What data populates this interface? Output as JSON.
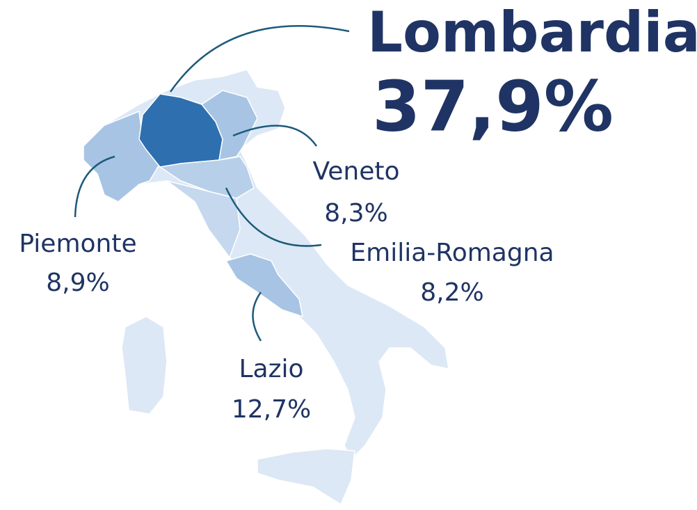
{
  "regions": [
    {
      "name": "Lombardia",
      "share": "37,9%"
    },
    {
      "name": "Veneto",
      "share": "8,3%"
    },
    {
      "name": "Emilia-Romagna",
      "share": "8,2%"
    },
    {
      "name": "Piemonte",
      "share": "8,9%"
    },
    {
      "name": "Lazio",
      "share": "12,7%"
    }
  ]
}
